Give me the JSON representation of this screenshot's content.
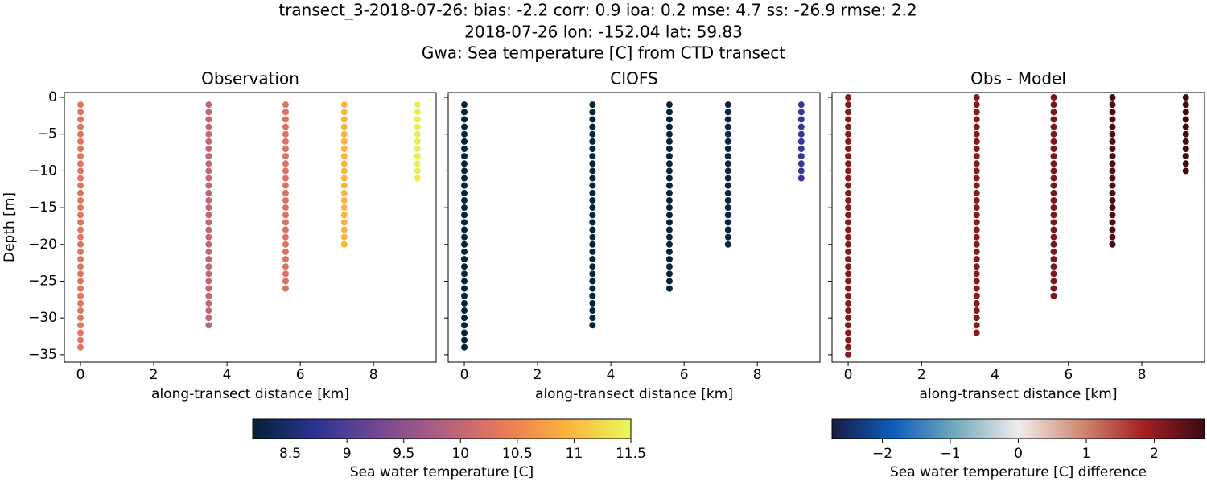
{
  "title": [
    "transect_3-2018-07-26: bias: -2.2  corr: 0.9  ioa: 0.2  mse: 4.7  ss: -26.9  rmse: 2.2",
    "2018-07-26 lon: -152.04 lat: 59.83",
    "Gwa: Sea temperature [C] from CTD transect"
  ],
  "colorbars": [
    {
      "label": "Sea water temperature [C]",
      "lim": [
        8.17,
        11.5
      ],
      "ticks": [
        8.5,
        9.0,
        9.5,
        10.0,
        10.5,
        11.0,
        11.5
      ],
      "colors": [
        "#042333",
        "#2c3395",
        "#744992",
        "#b15f82",
        "#eb7958",
        "#fbb43d",
        "#e8fa5b"
      ]
    },
    {
      "label": "Sea water temperature [C] difference",
      "lim": [
        -2.74,
        2.74
      ],
      "ticks": [
        {
          "value": -2,
          "label": "−2"
        },
        {
          "value": -1,
          "label": "−1"
        },
        0,
        1,
        2
      ],
      "colors": [
        "#181c43",
        "#0c5ebe",
        "#75aabe",
        "#f1eceb",
        "#d08b73",
        "#a52125",
        "#3c0912"
      ]
    }
  ],
  "chart_data": [
    {
      "type": "scatter",
      "title": "Observation",
      "xlabel": "along-transect distance [km]",
      "ylabel": "Depth [m]",
      "colorbar": 0,
      "xlim": [
        -0.44,
        9.71
      ],
      "ylim": [
        -36,
        0.66
      ],
      "xticks": [
        0,
        2,
        4,
        6,
        8
      ],
      "yticks": [
        0,
        {
          "value": -5,
          "label": "−5"
        },
        {
          "value": -10,
          "label": "−10"
        },
        {
          "value": -15,
          "label": "−15"
        },
        {
          "value": -20,
          "label": "−20"
        },
        {
          "value": -25,
          "label": "−25"
        },
        {
          "value": -30,
          "label": "−30"
        },
        {
          "value": -35,
          "label": "−35"
        }
      ],
      "stations": [
        {
          "x": 0,
          "y": [
            -1,
            -2,
            -3,
            -4,
            -5,
            -6,
            -7,
            -8,
            -9,
            -10,
            -11,
            -12,
            -13,
            -14,
            -15,
            -16,
            -17,
            -18,
            -19,
            -20,
            -21,
            -22,
            -23,
            -24,
            -25,
            -26,
            -27,
            -28,
            -29,
            -30,
            -31,
            -32,
            -33,
            -34
          ],
          "values": [
            10.3,
            10.3,
            10.3,
            10.3,
            10.3,
            10.3,
            10.3,
            10.3,
            10.3,
            10.3,
            10.3,
            10.3,
            10.3,
            10.3,
            10.3,
            10.3,
            10.3,
            10.3,
            10.3,
            10.3,
            10.3,
            10.3,
            10.3,
            10.3,
            10.3,
            10.3,
            10.3,
            10.3,
            10.3,
            10.3,
            10.3,
            10.3,
            10.3,
            10.3
          ]
        },
        {
          "x": 3.5,
          "y": [
            -1,
            -2,
            -3,
            -4,
            -5,
            -6,
            -7,
            -8,
            -9,
            -10,
            -11,
            -12,
            -13,
            -14,
            -15,
            -16,
            -17,
            -18,
            -19,
            -20,
            -21,
            -22,
            -23,
            -24,
            -25,
            -26,
            -27,
            -28,
            -29,
            -30,
            -31
          ],
          "values": [
            10.0,
            10.0,
            10.0,
            10.0,
            10.0,
            10.0,
            10.0,
            10.0,
            10.0,
            10.0,
            10.0,
            10.0,
            10.0,
            10.0,
            10.0,
            10.0,
            10.0,
            10.0,
            10.0,
            10.0,
            10.0,
            10.0,
            10.0,
            10.0,
            10.0,
            10.0,
            10.0,
            10.0,
            10.0,
            10.0,
            10.0
          ]
        },
        {
          "x": 5.6,
          "y": [
            -1,
            -2,
            -3,
            -4,
            -5,
            -6,
            -7,
            -8,
            -9,
            -10,
            -11,
            -12,
            -13,
            -14,
            -15,
            -16,
            -17,
            -18,
            -19,
            -20,
            -21,
            -22,
            -23,
            -24,
            -25,
            -26
          ],
          "values": [
            10.25,
            10.25,
            10.25,
            10.25,
            10.25,
            10.25,
            10.25,
            10.25,
            10.25,
            10.25,
            10.25,
            10.25,
            10.25,
            10.25,
            10.25,
            10.25,
            10.25,
            10.25,
            10.25,
            10.25,
            10.25,
            10.25,
            10.25,
            10.25,
            10.25,
            10.25
          ]
        },
        {
          "x": 7.2,
          "y": [
            -1,
            -2,
            -3,
            -4,
            -5,
            -6,
            -7,
            -8,
            -9,
            -10,
            -11,
            -12,
            -13,
            -14,
            -15,
            -16,
            -17,
            -18,
            -19,
            -20
          ],
          "values": [
            10.95,
            10.95,
            10.95,
            10.95,
            10.95,
            10.95,
            10.95,
            10.95,
            10.95,
            10.95,
            10.95,
            10.95,
            10.95,
            10.95,
            10.95,
            10.95,
            10.95,
            10.95,
            10.95,
            10.95
          ]
        },
        {
          "x": 9.2,
          "y": [
            -1,
            -2,
            -3,
            -4,
            -5,
            -6,
            -7,
            -8,
            -9,
            -10,
            -11
          ],
          "values": [
            11.4,
            11.4,
            11.4,
            11.4,
            11.4,
            11.4,
            11.4,
            11.4,
            11.4,
            11.4,
            11.4
          ]
        }
      ]
    },
    {
      "type": "scatter",
      "title": "CIOFS",
      "xlabel": "along-transect distance [km]",
      "colorbar": 0,
      "xlim": [
        -0.44,
        9.71
      ],
      "ylim": [
        -36,
        0.66
      ],
      "xticks": [
        0,
        2,
        4,
        6,
        8
      ],
      "stations": [
        {
          "x": 0,
          "y": [
            -1,
            -2,
            -3,
            -4,
            -5,
            -6,
            -7,
            -8,
            -9,
            -10,
            -11,
            -12,
            -13,
            -14,
            -15,
            -16,
            -17,
            -18,
            -19,
            -20,
            -21,
            -22,
            -23,
            -24,
            -25,
            -26,
            -27,
            -28,
            -29,
            -30,
            -31,
            -32,
            -33,
            -34
          ],
          "values": [
            8.2,
            8.2,
            8.2,
            8.2,
            8.2,
            8.2,
            8.2,
            8.2,
            8.2,
            8.2,
            8.2,
            8.2,
            8.2,
            8.2,
            8.2,
            8.2,
            8.2,
            8.2,
            8.2,
            8.2,
            8.2,
            8.2,
            8.2,
            8.2,
            8.2,
            8.2,
            8.2,
            8.2,
            8.2,
            8.2,
            8.2,
            8.2,
            8.2,
            8.2
          ]
        },
        {
          "x": 3.5,
          "y": [
            -1,
            -2,
            -3,
            -4,
            -5,
            -6,
            -7,
            -8,
            -9,
            -10,
            -11,
            -12,
            -13,
            -14,
            -15,
            -16,
            -17,
            -18,
            -19,
            -20,
            -21,
            -22,
            -23,
            -24,
            -25,
            -26,
            -27,
            -28,
            -29,
            -30,
            -31
          ],
          "values": [
            8.2,
            8.2,
            8.2,
            8.2,
            8.2,
            8.2,
            8.2,
            8.2,
            8.2,
            8.2,
            8.2,
            8.2,
            8.2,
            8.2,
            8.2,
            8.2,
            8.2,
            8.2,
            8.2,
            8.2,
            8.2,
            8.2,
            8.2,
            8.2,
            8.2,
            8.2,
            8.2,
            8.2,
            8.2,
            8.2,
            8.2
          ]
        },
        {
          "x": 5.6,
          "y": [
            -1,
            -2,
            -3,
            -4,
            -5,
            -6,
            -7,
            -8,
            -9,
            -10,
            -11,
            -12,
            -13,
            -14,
            -15,
            -16,
            -17,
            -18,
            -19,
            -20,
            -21,
            -22,
            -23,
            -24,
            -25,
            -26
          ],
          "values": [
            8.2,
            8.2,
            8.2,
            8.2,
            8.2,
            8.2,
            8.2,
            8.2,
            8.2,
            8.2,
            8.2,
            8.2,
            8.2,
            8.2,
            8.2,
            8.2,
            8.2,
            8.2,
            8.2,
            8.2,
            8.2,
            8.2,
            8.2,
            8.2,
            8.2,
            8.2
          ]
        },
        {
          "x": 7.2,
          "y": [
            -1,
            -2,
            -3,
            -4,
            -5,
            -6,
            -7,
            -8,
            -9,
            -10,
            -11,
            -12,
            -13,
            -14,
            -15,
            -16,
            -17,
            -18,
            -19,
            -20
          ],
          "values": [
            8.25,
            8.25,
            8.25,
            8.25,
            8.25,
            8.25,
            8.25,
            8.25,
            8.25,
            8.25,
            8.25,
            8.25,
            8.25,
            8.25,
            8.25,
            8.25,
            8.25,
            8.25,
            8.25,
            8.25
          ]
        },
        {
          "x": 9.2,
          "y": [
            -1,
            -2,
            -3,
            -4,
            -5,
            -6,
            -7,
            -8,
            -9,
            -10,
            -11
          ],
          "values": [
            8.8,
            8.8,
            8.8,
            8.8,
            8.8,
            8.8,
            8.8,
            8.8,
            8.8,
            8.8,
            8.8
          ]
        }
      ]
    },
    {
      "type": "scatter",
      "title": "Obs - Model",
      "xlabel": "along-transect distance [km]",
      "colorbar": 1,
      "xlim": [
        -0.44,
        9.71
      ],
      "ylim": [
        -36,
        0.66
      ],
      "xticks": [
        0,
        2,
        4,
        6,
        8
      ],
      "stations": [
        {
          "x": 0,
          "y": [
            0,
            -1,
            -2,
            -3,
            -4,
            -5,
            -6,
            -7,
            -8,
            -9,
            -10,
            -11,
            -12,
            -13,
            -14,
            -15,
            -16,
            -17,
            -18,
            -19,
            -20,
            -21,
            -22,
            -23,
            -24,
            -25,
            -26,
            -27,
            -28,
            -29,
            -30,
            -31,
            -32,
            -33,
            -34,
            -35
          ],
          "values": [
            2.1,
            2.1,
            2.1,
            2.1,
            2.1,
            2.1,
            2.1,
            2.1,
            2.1,
            2.1,
            2.1,
            2.1,
            2.1,
            2.1,
            2.1,
            2.1,
            2.1,
            2.1,
            2.1,
            2.1,
            2.1,
            2.1,
            2.1,
            2.1,
            2.1,
            2.1,
            2.1,
            2.1,
            2.1,
            2.1,
            2.1,
            2.1,
            2.1,
            2.1,
            2.1,
            2.1
          ]
        },
        {
          "x": 3.5,
          "y": [
            0,
            -1,
            -2,
            -3,
            -4,
            -5,
            -6,
            -7,
            -8,
            -9,
            -10,
            -11,
            -12,
            -13,
            -14,
            -15,
            -16,
            -17,
            -18,
            -19,
            -20,
            -21,
            -22,
            -23,
            -24,
            -25,
            -26,
            -27,
            -28,
            -29,
            -30,
            -31,
            -32
          ],
          "values": [
            2.1,
            2.1,
            2.1,
            2.1,
            2.1,
            2.1,
            2.1,
            2.1,
            2.1,
            2.1,
            2.1,
            2.1,
            2.1,
            2.1,
            2.1,
            2.1,
            2.1,
            2.1,
            2.1,
            2.1,
            2.1,
            2.1,
            2.1,
            2.1,
            2.1,
            2.1,
            2.1,
            2.1,
            2.1,
            2.1,
            2.1,
            2.1,
            2.1
          ]
        },
        {
          "x": 5.6,
          "y": [
            0,
            -1,
            -2,
            -3,
            -4,
            -5,
            -6,
            -7,
            -8,
            -9,
            -10,
            -11,
            -12,
            -13,
            -14,
            -15,
            -16,
            -17,
            -18,
            -19,
            -20,
            -21,
            -22,
            -23,
            -24,
            -25,
            -26,
            -27
          ],
          "values": [
            2.2,
            2.2,
            2.2,
            2.2,
            2.2,
            2.2,
            2.2,
            2.2,
            2.2,
            2.2,
            2.2,
            2.2,
            2.2,
            2.2,
            2.2,
            2.2,
            2.2,
            2.2,
            2.2,
            2.2,
            2.2,
            2.2,
            2.2,
            2.2,
            2.2,
            2.2,
            2.2,
            2.2
          ]
        },
        {
          "x": 7.2,
          "y": [
            0,
            -1,
            -2,
            -3,
            -4,
            -5,
            -6,
            -7,
            -8,
            -9,
            -10,
            -11,
            -12,
            -13,
            -14,
            -15,
            -16,
            -17,
            -18,
            -19,
            -20
          ],
          "values": [
            2.6,
            2.6,
            2.6,
            2.6,
            2.6,
            2.6,
            2.6,
            2.6,
            2.6,
            2.6,
            2.6,
            2.6,
            2.6,
            2.6,
            2.6,
            2.6,
            2.6,
            2.6,
            2.6,
            2.6,
            2.6
          ]
        },
        {
          "x": 9.2,
          "y": [
            0,
            -1,
            -2,
            -3,
            -4,
            -5,
            -6,
            -7,
            -8,
            -9,
            -10
          ],
          "values": [
            2.7,
            2.7,
            2.7,
            2.7,
            2.7,
            2.7,
            2.7,
            2.7,
            2.7,
            2.7,
            2.7
          ]
        }
      ]
    }
  ]
}
